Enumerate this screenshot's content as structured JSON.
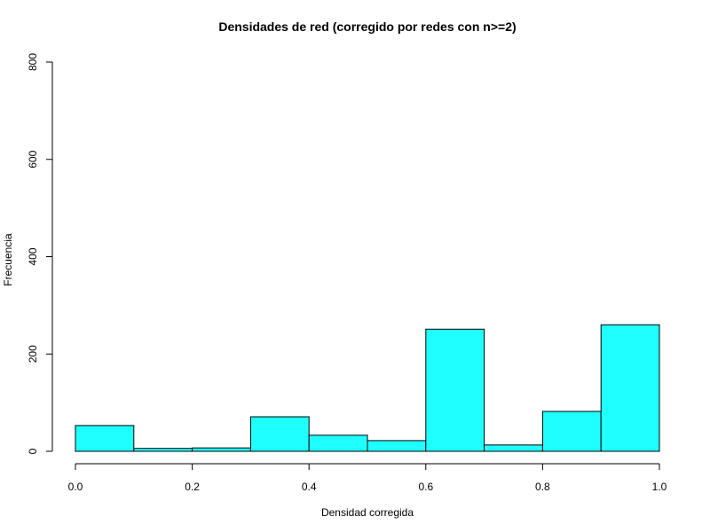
{
  "chart_data": {
    "type": "histogram",
    "title": "Densidades de red (corregido por redes con n>=2)",
    "x_label": "Densidad corregida",
    "y_label": "Frecuencia",
    "bins": [
      0,
      0.1,
      0.2,
      0.3,
      0.4,
      0.5,
      0.6,
      0.7,
      0.8,
      0.9,
      1.0
    ],
    "counts": [
      53,
      6,
      7,
      71,
      33,
      22,
      251,
      13,
      82,
      260
    ],
    "color": "#1fffff",
    "xlim": [
      0,
      1
    ],
    "xticks": [
      {
        "value": 0,
        "label": "0.0"
      },
      0.2,
      0.4,
      0.6,
      0.8,
      {
        "value": 1,
        "label": "1.0"
      }
    ],
    "ylim": [
      0,
      800
    ],
    "yticks": [
      0,
      200,
      400,
      600,
      800
    ]
  }
}
